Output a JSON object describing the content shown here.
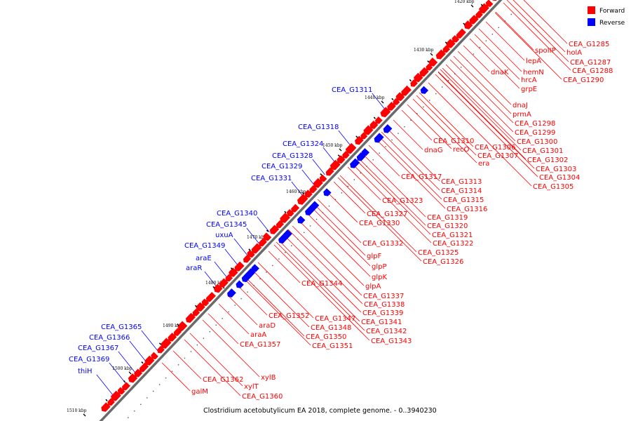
{
  "caption": "Clostridium acetobutylicum EA 2018, complete genome. - 0..3940230",
  "legend": {
    "forward": {
      "label": "Forward",
      "color": "#ff0000"
    },
    "reverse": {
      "label": "Reverse",
      "color": "#0000ff"
    }
  },
  "colors": {
    "backbone": "#6a6a6a",
    "forward": "#ff0000",
    "reverse": "#0000ff",
    "black": "#000000"
  },
  "kbp_ticks": [
    "1420 kbp",
    "1430 kbp",
    "1440 kbp",
    "1450 kbp",
    "1460 kbp",
    "1470 kbp",
    "1480 kbp",
    "1490 kbp",
    "1500 kbp",
    "1510 kbp"
  ],
  "forward_labels": [
    "CEA_G1285",
    "holA",
    "spoIIP",
    "CEA_G1287",
    "CEA_G1288",
    "lepA",
    "hemN",
    "CEA_G1290",
    "dnaK",
    "hrcA",
    "grpE",
    "dnaJ",
    "prmA",
    "CEA_G1298",
    "CEA_G1299",
    "CEA_G1300",
    "CEA_G1301",
    "CEA_G1302",
    "CEA_G1303",
    "CEA_G1304",
    "CEA_G1305",
    "CEA_G1310",
    "CEA_G1306",
    "dnaG",
    "recO",
    "CEA_G1307",
    "era",
    "CEA_G1317",
    "CEA_G1313",
    "CEA_G1314",
    "CEA_G1315",
    "CEA_G1316",
    "CEA_G1323",
    "CEA_G1319",
    "CEA_G1327",
    "CEA_G1320",
    "CEA_G1330",
    "CEA_G1321",
    "CEA_G1322",
    "CEA_G1332",
    "CEA_G1325",
    "glpF",
    "CEA_G1326",
    "glpP",
    "glpK",
    "CEA_G1344",
    "glpA",
    "CEA_G1337",
    "CEA_G1338",
    "CEA_G1339",
    "CEA_G1352",
    "CEA_G1347",
    "CEA_G1341",
    "araD",
    "CEA_G1348",
    "CEA_G1342",
    "araA",
    "CEA_G1350",
    "CEA_G1343",
    "CEA_G1357",
    "CEA_G1351",
    "xylB",
    "CEA_G1362",
    "xylT",
    "galM",
    "CEA_G1360"
  ],
  "reverse_labels": [
    "CEA_G1311",
    "CEA_G1318",
    "CEA_G1324",
    "CEA_G1328",
    "CEA_G1329",
    "CEA_G1331",
    "CEA_G1340",
    "CEA_G1345",
    "uxuA",
    "CEA_G1349",
    "araE",
    "araR",
    "CEA_G1365",
    "CEA_G1366",
    "CEA_G1367",
    "CEA_G1369",
    "thiH"
  ]
}
